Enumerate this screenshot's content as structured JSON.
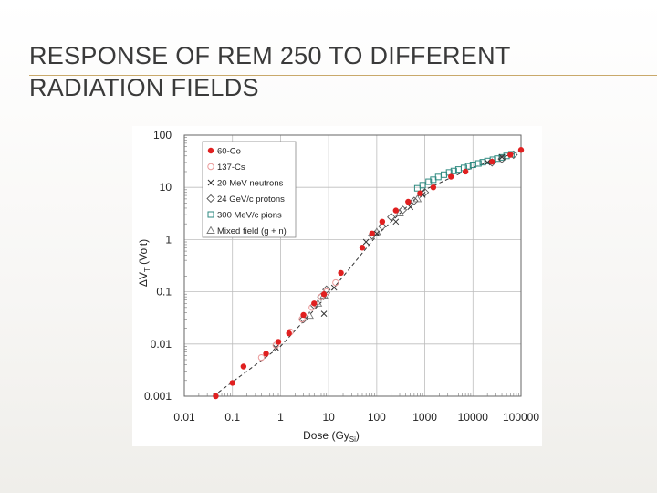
{
  "slide": {
    "title_line1": "RESPONSE OF REM 250 TO DIFFERENT",
    "title_line2": "RADIATION FIELDS"
  },
  "chart_data": {
    "type": "scatter",
    "title": "",
    "xlabel": "Dose (Gy",
    "xlabel_sub": "Si",
    "xlabel_close": ")",
    "ylabel": "ΔV",
    "ylabel_sub": "T",
    "ylabel_unit": " (Volt)",
    "x_scale": "log",
    "y_scale": "log",
    "xlim": [
      0.01,
      100000
    ],
    "ylim": [
      0.001,
      100
    ],
    "x_ticks": [
      0.01,
      0.1,
      1,
      10,
      100,
      1000,
      10000,
      100000
    ],
    "x_tick_labels": [
      "0.01",
      "0.1",
      "1",
      "10",
      "100",
      "1000",
      "10000",
      "100000"
    ],
    "y_ticks": [
      0.001,
      0.01,
      0.1,
      1,
      10,
      100
    ],
    "y_tick_labels": [
      "0.001",
      "0.01",
      "0.1",
      "1",
      "10",
      "100"
    ],
    "grid": true,
    "legend_position": "top-left",
    "series": [
      {
        "name": "60-Co",
        "marker": "filled-circle",
        "color": "#e02020",
        "points": [
          [
            0.045,
            0.001
          ],
          [
            0.1,
            0.0018
          ],
          [
            0.17,
            0.0037
          ],
          [
            0.5,
            0.0065
          ],
          [
            0.9,
            0.011
          ],
          [
            1.5,
            0.016
          ],
          [
            3,
            0.036
          ],
          [
            5,
            0.06
          ],
          [
            8,
            0.09
          ],
          [
            18,
            0.23
          ],
          [
            50,
            0.7
          ],
          [
            80,
            1.3
          ],
          [
            130,
            2.2
          ],
          [
            250,
            3.6
          ],
          [
            450,
            5.3
          ],
          [
            800,
            7.7
          ],
          [
            1500,
            10
          ],
          [
            3500,
            16
          ],
          [
            7000,
            20
          ],
          [
            25000,
            31
          ],
          [
            60000,
            42
          ],
          [
            100000,
            52
          ]
        ]
      },
      {
        "name": "137-Cs",
        "marker": "open-circle",
        "color": "#ea9a9a",
        "points": [
          [
            0.4,
            0.0055
          ],
          [
            0.8,
            0.0095
          ],
          [
            1.6,
            0.017
          ],
          [
            2.8,
            0.03
          ],
          [
            4.5,
            0.05
          ],
          [
            7,
            0.08
          ],
          [
            9,
            0.1
          ],
          [
            14,
            0.15
          ]
        ]
      },
      {
        "name": "20 MeV neutrons",
        "marker": "cross",
        "color": "#333333",
        "points": [
          [
            0.8,
            0.0085
          ],
          [
            8,
            0.038
          ],
          [
            13,
            0.12
          ],
          [
            60,
            0.9
          ],
          [
            100,
            1.3
          ],
          [
            250,
            2.2
          ],
          [
            500,
            4.2
          ],
          [
            900,
            7.2
          ],
          [
            20000,
            30
          ],
          [
            40000,
            38
          ]
        ]
      },
      {
        "name": "24 GeV/c protons",
        "marker": "open-diamond",
        "color": "#555555",
        "points": [
          [
            3,
            0.03
          ],
          [
            5,
            0.055
          ],
          [
            7,
            0.08
          ],
          [
            9,
            0.11
          ],
          [
            80,
            1.2
          ],
          [
            130,
            1.8
          ],
          [
            200,
            2.7
          ],
          [
            350,
            3.7
          ],
          [
            600,
            5.5
          ],
          [
            1000,
            8
          ],
          [
            25000,
            30
          ],
          [
            40000,
            35
          ],
          [
            70000,
            42
          ]
        ]
      },
      {
        "name": "300 MeV/c pions",
        "marker": "open-square",
        "color": "#2e8a80",
        "points": [
          [
            700,
            9.6
          ],
          [
            900,
            11
          ],
          [
            1200,
            12.8
          ],
          [
            1500,
            14
          ],
          [
            1900,
            15.8
          ],
          [
            2500,
            17.5
          ],
          [
            3200,
            19.3
          ],
          [
            4000,
            20.6
          ],
          [
            5000,
            22
          ],
          [
            6500,
            23.6
          ],
          [
            8000,
            25.3
          ],
          [
            10000,
            27
          ],
          [
            13000,
            28.7
          ],
          [
            16000,
            30.3
          ],
          [
            20000,
            32
          ],
          [
            26000,
            33.8
          ],
          [
            32000,
            35.5
          ],
          [
            40000,
            37.5
          ],
          [
            50000,
            40
          ],
          [
            63000,
            43
          ]
        ]
      },
      {
        "name": "Mixed field (g + n)",
        "marker": "open-triangle",
        "color": "#777777",
        "points": [
          [
            4,
            0.035
          ],
          [
            6,
            0.06
          ],
          [
            8,
            0.085
          ],
          [
            100,
            1.4
          ],
          [
            300,
            3.2
          ],
          [
            700,
            6
          ]
        ]
      }
    ],
    "fit_line": {
      "style": "dashed",
      "points": [
        [
          0.04,
          0.001
        ],
        [
          1,
          0.009
        ],
        [
          10,
          0.09
        ],
        [
          100,
          1.2
        ],
        [
          1000,
          9
        ],
        [
          10000,
          24
        ],
        [
          100000,
          50
        ]
      ]
    }
  }
}
